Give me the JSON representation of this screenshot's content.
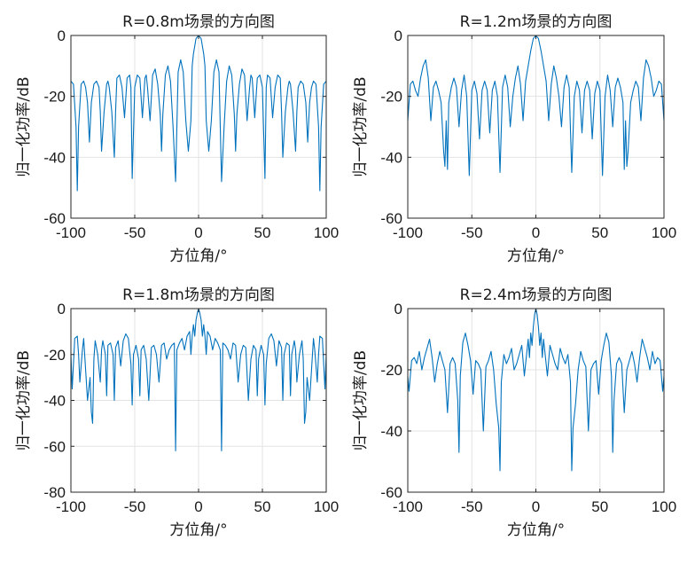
{
  "figure": {
    "xlabel": "方位角/°",
    "ylabel": "归一化功率/dB",
    "line_color": "#0072bd"
  },
  "chart_data": [
    {
      "type": "line",
      "title": "R=0.8m场景的方向图",
      "xlabel": "方位角/°",
      "ylabel": "归一化功率/dB",
      "xlim": [
        -100,
        100
      ],
      "ylim": [
        -60,
        0
      ],
      "xticks": [
        "-100",
        "-50",
        "0",
        "50",
        "100"
      ],
      "yticks": [
        "-60",
        "-40",
        "-20",
        "0"
      ],
      "grid": true,
      "series": [
        {
          "name": "R=0.8m",
          "x": [
            -100,
            -98,
            -96,
            -95,
            -94,
            -92,
            -90,
            -88.5,
            -87,
            -85.5,
            -84,
            -82,
            -80,
            -78,
            -77,
            -76,
            -74,
            -72,
            -71,
            -70,
            -68,
            -66,
            -65,
            -64,
            -62,
            -60,
            -58,
            -56,
            -54,
            -53,
            -52,
            -50,
            -48,
            -46,
            -44,
            -42,
            -41,
            -40,
            -38,
            -36,
            -34,
            -32,
            -30,
            -29,
            -28,
            -26,
            -24,
            -22,
            -20,
            -18,
            -17,
            -16,
            -14,
            -12,
            -10,
            -8,
            -6,
            -5,
            -4,
            -2,
            0,
            2,
            4,
            5,
            6,
            8,
            10,
            12,
            14,
            16,
            17,
            18,
            20,
            22,
            24,
            26,
            28,
            29,
            30,
            32,
            34,
            36,
            38,
            40,
            41,
            42,
            44,
            46,
            48,
            50,
            52,
            53,
            54,
            56,
            58,
            60,
            62,
            64,
            65,
            66,
            68,
            70,
            71,
            72,
            74,
            76,
            77,
            78,
            80,
            82,
            84,
            85.5,
            87,
            88.5,
            90,
            92,
            94,
            95,
            96,
            98,
            100
          ],
          "y": [
            -15,
            -16,
            -30,
            -51,
            -30,
            -16,
            -15,
            -17,
            -22,
            -35,
            -22,
            -16,
            -15,
            -17,
            -25,
            -38,
            -25,
            -16,
            -15,
            -17,
            -25,
            -40,
            -25,
            -14,
            -13,
            -17,
            -27,
            -14,
            -13,
            -17,
            -47,
            -17,
            -13,
            -14,
            -27,
            -14,
            -13,
            -17,
            -28,
            -13,
            -11,
            -16,
            -26,
            -38,
            -26,
            -13,
            -10,
            -15,
            -30,
            -48,
            -30,
            -12,
            -8,
            -12,
            -28,
            -38,
            -28,
            -10,
            -6,
            -1,
            0,
            -1,
            -6,
            -10,
            -28,
            -38,
            -28,
            -12,
            -8,
            -12,
            -30,
            -48,
            -30,
            -15,
            -10,
            -13,
            -26,
            -38,
            -26,
            -16,
            -11,
            -13,
            -28,
            -17,
            -13,
            -14,
            -27,
            -14,
            -13,
            -17,
            -47,
            -17,
            -13,
            -14,
            -27,
            -17,
            -13,
            -14,
            -25,
            -40,
            -25,
            -17,
            -15,
            -16,
            -25,
            -38,
            -25,
            -17,
            -15,
            -16,
            -22,
            -35,
            -22,
            -17,
            -15,
            -16,
            -30,
            -51,
            -30,
            -16,
            -15
          ]
        }
      ]
    },
    {
      "type": "line",
      "title": "R=1.2m场景的方向图",
      "xlabel": "方位角/°",
      "ylabel": "归一化功率/dB",
      "xlim": [
        -100,
        100
      ],
      "ylim": [
        -60,
        0
      ],
      "xticks": [
        "-100",
        "-50",
        "0",
        "50",
        "100"
      ],
      "yticks": [
        "-60",
        "-40",
        "-20",
        "0"
      ],
      "grid": true,
      "series": [
        {
          "name": "R=1.2m",
          "x": [
            -100,
            -98,
            -96,
            -94,
            -92,
            -90,
            -88,
            -86,
            -84,
            -82,
            -80,
            -78,
            -76,
            -74,
            -72,
            -71,
            -70,
            -69,
            -68,
            -66,
            -64,
            -62,
            -60,
            -58,
            -56,
            -54,
            -52,
            -50,
            -48,
            -46,
            -44,
            -42,
            -40,
            -38,
            -36,
            -34,
            -32,
            -30,
            -28,
            -26,
            -24,
            -22,
            -20,
            -18,
            -16,
            -14,
            -12,
            -10,
            -8,
            -6,
            -4,
            -2,
            0,
            2,
            4,
            6,
            8,
            10,
            12,
            14,
            16,
            18,
            20,
            22,
            24,
            26,
            28,
            30,
            32,
            34,
            36,
            38,
            40,
            42,
            44,
            46,
            48,
            50,
            52,
            54,
            56,
            58,
            60,
            62,
            64,
            66,
            68,
            69,
            70,
            71,
            72,
            74,
            76,
            78,
            80,
            82,
            84,
            86,
            88,
            90,
            92,
            94,
            96,
            98,
            100
          ],
          "y": [
            -28,
            -16,
            -15,
            -18,
            -20,
            -14,
            -10,
            -8,
            -14,
            -28,
            -17,
            -15,
            -18,
            -22,
            -38,
            -43,
            -28,
            -44,
            -22,
            -17,
            -14,
            -17,
            -30,
            -18,
            -13,
            -20,
            -46,
            -18,
            -15,
            -19,
            -34,
            -18,
            -15,
            -18,
            -32,
            -18,
            -15,
            -20,
            -45,
            -17,
            -13,
            -17,
            -30,
            -20,
            -14,
            -10,
            -16,
            -28,
            -15,
            -10,
            -5,
            -1,
            0,
            -1,
            -5,
            -10,
            -15,
            -28,
            -16,
            -10,
            -14,
            -20,
            -30,
            -17,
            -13,
            -17,
            -45,
            -20,
            -15,
            -18,
            -32,
            -18,
            -15,
            -18,
            -34,
            -19,
            -15,
            -18,
            -46,
            -20,
            -13,
            -18,
            -30,
            -17,
            -14,
            -17,
            -22,
            -44,
            -28,
            -43,
            -38,
            -22,
            -18,
            -15,
            -17,
            -28,
            -14,
            -8,
            -10,
            -14,
            -20,
            -18,
            -15,
            -16,
            -28
          ]
        }
      ]
    },
    {
      "type": "line",
      "title": "R=1.8m场景的方向图",
      "xlabel": "方位角/°",
      "ylabel": "归一化功率/dB",
      "xlim": [
        -100,
        100
      ],
      "ylim": [
        -80,
        0
      ],
      "xticks": [
        "-100",
        "-50",
        "0",
        "50",
        "100"
      ],
      "yticks": [
        "-80",
        "-60",
        "-40",
        "-20",
        "0"
      ],
      "grid": true,
      "series": [
        {
          "name": "R=1.8m",
          "x": [
            -100,
            -99,
            -97,
            -95,
            -94,
            -93,
            -91,
            -90,
            -89,
            -87,
            -85,
            -84,
            -83,
            -82,
            -81,
            -79,
            -77,
            -76,
            -75,
            -73,
            -72,
            -71,
            -69,
            -67,
            -66,
            -65,
            -63,
            -61,
            -59,
            -57,
            -55,
            -53,
            -52,
            -51,
            -49,
            -47,
            -46,
            -45,
            -43,
            -41,
            -39,
            -37,
            -35,
            -33,
            -31,
            -29,
            -27,
            -25,
            -23,
            -21,
            -19,
            -18,
            -17,
            -15,
            -13,
            -11,
            -9,
            -7,
            -6,
            -5,
            -4,
            -3,
            -2,
            -1,
            0,
            1,
            2,
            3,
            4,
            5,
            6,
            7,
            9,
            11,
            13,
            15,
            17,
            18,
            19,
            21,
            23,
            25,
            27,
            29,
            31,
            33,
            35,
            37,
            39,
            41,
            43,
            45,
            46,
            47,
            49,
            51,
            52,
            53,
            55,
            57,
            59,
            61,
            63,
            65,
            66,
            67,
            69,
            71,
            72,
            73,
            75,
            76,
            77,
            79,
            81,
            82,
            83,
            84,
            85,
            87,
            89,
            90,
            91,
            93,
            94,
            95,
            97,
            99,
            100
          ],
          "y": [
            -20,
            -35,
            -13,
            -12,
            -20,
            -32,
            -18,
            -13,
            -22,
            -40,
            -30,
            -45,
            -50,
            -22,
            -14,
            -20,
            -32,
            -18,
            -14,
            -20,
            -38,
            -16,
            -15,
            -20,
            -40,
            -17,
            -14,
            -25,
            -14,
            -11,
            -13,
            -24,
            -42,
            -20,
            -16,
            -22,
            -38,
            -18,
            -16,
            -22,
            -40,
            -17,
            -16,
            -20,
            -32,
            -16,
            -15,
            -22,
            -18,
            -16,
            -15,
            -62,
            -18,
            -15,
            -13,
            -18,
            -12,
            -10,
            -20,
            -12,
            -7,
            -12,
            -5,
            -2,
            0,
            -2,
            -5,
            -12,
            -7,
            -12,
            -20,
            -10,
            -12,
            -18,
            -13,
            -15,
            -18,
            -62,
            -15,
            -16,
            -18,
            -22,
            -15,
            -16,
            -32,
            -20,
            -16,
            -17,
            -40,
            -22,
            -16,
            -18,
            -38,
            -22,
            -16,
            -20,
            -42,
            -24,
            -13,
            -11,
            -14,
            -25,
            -14,
            -17,
            -40,
            -20,
            -15,
            -16,
            -38,
            -20,
            -14,
            -18,
            -32,
            -20,
            -14,
            -22,
            -50,
            -45,
            -30,
            -40,
            -22,
            -13,
            -18,
            -32,
            -20,
            -12,
            -13,
            -35,
            -20
          ]
        }
      ]
    },
    {
      "type": "line",
      "title": "R=2.4m场景的方向图",
      "xlabel": "方位角/°",
      "ylabel": "归一化功率/dB",
      "xlim": [
        -100,
        100
      ],
      "ylim": [
        -60,
        0
      ],
      "xticks": [
        "-100",
        "-50",
        "0",
        "50",
        "100"
      ],
      "yticks": [
        "-60",
        "-40",
        "-20",
        "0"
      ],
      "grid": true,
      "series": [
        {
          "name": "R=2.4m",
          "x": [
            -100,
            -99,
            -97,
            -95,
            -93,
            -91,
            -89,
            -87,
            -85,
            -83,
            -81,
            -79,
            -77,
            -75,
            -73,
            -71,
            -69,
            -67,
            -65,
            -63,
            -61,
            -60,
            -59,
            -57,
            -55,
            -53,
            -51,
            -49,
            -47,
            -45,
            -43,
            -41,
            -39,
            -37,
            -35,
            -33,
            -31,
            -29,
            -28,
            -27,
            -25,
            -23,
            -21,
            -19,
            -17,
            -15,
            -13,
            -11,
            -9,
            -7,
            -6,
            -5,
            -4,
            -3,
            -2,
            -1,
            0,
            1,
            2,
            3,
            4,
            5,
            6,
            7,
            9,
            11,
            13,
            15,
            17,
            19,
            21,
            23,
            25,
            27,
            28,
            29,
            31,
            33,
            35,
            37,
            39,
            41,
            43,
            45,
            47,
            49,
            51,
            53,
            55,
            57,
            59,
            60,
            61,
            63,
            65,
            67,
            69,
            71,
            73,
            75,
            77,
            79,
            81,
            83,
            85,
            87,
            89,
            91,
            93,
            95,
            97,
            99,
            100
          ],
          "y": [
            -22,
            -27,
            -17,
            -16,
            -18,
            -14,
            -20,
            -16,
            -13,
            -10,
            -16,
            -24,
            -18,
            -14,
            -17,
            -20,
            -34,
            -18,
            -16,
            -18,
            -30,
            -47,
            -22,
            -11,
            -8,
            -12,
            -17,
            -28,
            -17,
            -18,
            -20,
            -40,
            -19,
            -17,
            -14,
            -20,
            -31,
            -39,
            -53,
            -24,
            -15,
            -18,
            -16,
            -13,
            -20,
            -18,
            -15,
            -12,
            -22,
            -14,
            -10,
            -16,
            -8,
            -12,
            -6,
            -2,
            0,
            -2,
            -6,
            -12,
            -8,
            -16,
            -10,
            -14,
            -22,
            -12,
            -15,
            -18,
            -20,
            -13,
            -16,
            -18,
            -15,
            -24,
            -53,
            -39,
            -31,
            -20,
            -14,
            -17,
            -19,
            -40,
            -20,
            -18,
            -17,
            -28,
            -17,
            -12,
            -8,
            -11,
            -22,
            -47,
            -30,
            -18,
            -16,
            -18,
            -34,
            -20,
            -17,
            -14,
            -18,
            -24,
            -16,
            -10,
            -13,
            -16,
            -20,
            -14,
            -18,
            -16,
            -17,
            -27,
            -22
          ]
        }
      ]
    }
  ]
}
